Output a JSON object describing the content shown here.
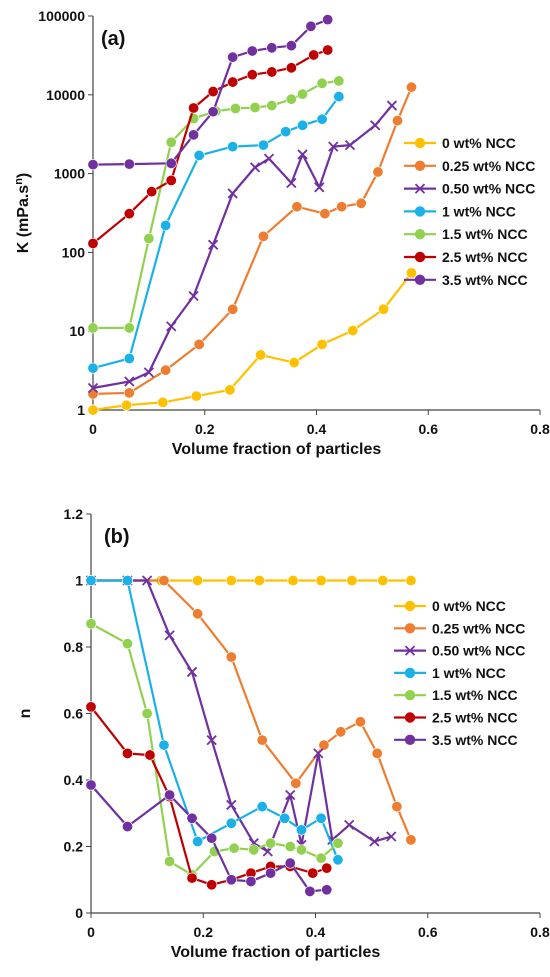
{
  "chart_data": [
    {
      "type": "line",
      "panel_label": "(a)",
      "xlabel": "Volume fraction of particles",
      "ylabel": "K (mPa.s",
      "ylabel_sup": "n",
      "ylabel_end": ")",
      "xlim": [
        0,
        0.8
      ],
      "ylim": [
        1,
        100000
      ],
      "yscale": "log",
      "xticks": [
        "0",
        "0.2",
        "0.4",
        "0.6",
        "0.8"
      ],
      "xtick_values": [
        0,
        0.2,
        0.4,
        0.6,
        0.8
      ],
      "yticks": [
        "1",
        "10",
        "100",
        "1000",
        "10000",
        "100000"
      ],
      "ytick_values": [
        1,
        10,
        100,
        1000,
        10000,
        100000
      ],
      "legend_position": "right",
      "series": [
        {
          "name": "0 wt% NCC",
          "color": "#ffc000",
          "marker": "circle",
          "points": [
            [
              0,
              1
            ],
            [
              0.06,
              1.15
            ],
            [
              0.125,
              1.25
            ],
            [
              0.185,
              1.5
            ],
            [
              0.245,
              1.8
            ],
            [
              0.3,
              5
            ],
            [
              0.36,
              4
            ],
            [
              0.41,
              6.8
            ],
            [
              0.465,
              10.2
            ],
            [
              0.52,
              19
            ],
            [
              0.57,
              55
            ]
          ]
        },
        {
          "name": "0.25 wt% NCC",
          "color": "#ed7d31",
          "marker": "circle",
          "points": [
            [
              0,
              1.6
            ],
            [
              0.065,
              1.65
            ],
            [
              0.13,
              3.2
            ],
            [
              0.19,
              6.8
            ],
            [
              0.25,
              19
            ],
            [
              0.305,
              160
            ],
            [
              0.365,
              380
            ],
            [
              0.415,
              310
            ],
            [
              0.445,
              380
            ],
            [
              0.48,
              420
            ],
            [
              0.51,
              1050
            ],
            [
              0.545,
              4700
            ],
            [
              0.57,
              12500
            ]
          ]
        },
        {
          "name": "0.50 wt% NCC",
          "color": "#7030a0",
          "marker": "x",
          "points": [
            [
              0,
              1.9
            ],
            [
              0.065,
              2.3
            ],
            [
              0.1,
              3
            ],
            [
              0.14,
              11.5
            ],
            [
              0.18,
              28
            ],
            [
              0.215,
              125
            ],
            [
              0.25,
              560
            ],
            [
              0.29,
              1200
            ],
            [
              0.315,
              1550
            ],
            [
              0.355,
              760
            ],
            [
              0.375,
              1750
            ],
            [
              0.405,
              670
            ],
            [
              0.43,
              2200
            ],
            [
              0.46,
              2300
            ],
            [
              0.505,
              4100
            ],
            [
              0.535,
              7300
            ]
          ]
        },
        {
          "name": "1 wt% NCC",
          "color": "#1ab0e8",
          "marker": "circle",
          "points": [
            [
              0,
              3.4
            ],
            [
              0.065,
              4.5
            ],
            [
              0.13,
              220
            ],
            [
              0.19,
              1700
            ],
            [
              0.25,
              2200
            ],
            [
              0.305,
              2300
            ],
            [
              0.345,
              3400
            ],
            [
              0.375,
              4100
            ],
            [
              0.41,
              4900
            ],
            [
              0.44,
              9500
            ]
          ]
        },
        {
          "name": "1.5 wt% NCC",
          "color": "#92d050",
          "marker": "circle",
          "points": [
            [
              0,
              11
            ],
            [
              0.065,
              11
            ],
            [
              0.1,
              150
            ],
            [
              0.14,
              2500
            ],
            [
              0.18,
              5000
            ],
            [
              0.22,
              6200
            ],
            [
              0.255,
              6700
            ],
            [
              0.29,
              6900
            ],
            [
              0.32,
              7300
            ],
            [
              0.355,
              8800
            ],
            [
              0.375,
              10200
            ],
            [
              0.41,
              14000
            ],
            [
              0.44,
              15000
            ]
          ]
        },
        {
          "name": "2.5 wt% NCC",
          "color": "#c00000",
          "marker": "circle",
          "points": [
            [
              0,
              130
            ],
            [
              0.065,
              310
            ],
            [
              0.105,
              590
            ],
            [
              0.14,
              820
            ],
            [
              0.18,
              6800
            ],
            [
              0.215,
              11000
            ],
            [
              0.25,
              14500
            ],
            [
              0.285,
              18000
            ],
            [
              0.32,
              19500
            ],
            [
              0.355,
              22000
            ],
            [
              0.395,
              32000
            ],
            [
              0.42,
              37000
            ]
          ]
        },
        {
          "name": "3.5 wt% NCC",
          "color": "#7030a0",
          "marker": "circle",
          "points": [
            [
              0,
              1300
            ],
            [
              0.065,
              1320
            ],
            [
              0.14,
              1350
            ],
            [
              0.18,
              3100
            ],
            [
              0.215,
              6100
            ],
            [
              0.25,
              30000
            ],
            [
              0.285,
              36000
            ],
            [
              0.32,
              39500
            ],
            [
              0.355,
              42000
            ],
            [
              0.39,
              74000
            ],
            [
              0.42,
              90000
            ]
          ]
        }
      ]
    },
    {
      "type": "line",
      "panel_label": "(b)",
      "xlabel": "Volume fraction of particles",
      "ylabel": "n",
      "ylabel_sup": "",
      "ylabel_end": "",
      "xlim": [
        0,
        0.8
      ],
      "ylim": [
        0,
        1.2
      ],
      "yscale": "linear",
      "xticks": [
        "0",
        "0.2",
        "0.4",
        "0.6",
        "0.8"
      ],
      "xtick_values": [
        0,
        0.2,
        0.4,
        0.6,
        0.8
      ],
      "yticks": [
        "0",
        "0.2",
        "0.4",
        "0.6",
        "0.8",
        "1",
        "1.2"
      ],
      "ytick_values": [
        0,
        0.2,
        0.4,
        0.6,
        0.8,
        1,
        1.2
      ],
      "legend_position": "right",
      "series": [
        {
          "name": "0 wt% NCC",
          "color": "#ffc000",
          "marker": "circle",
          "points": [
            [
              0,
              1
            ],
            [
              0.065,
              1
            ],
            [
              0.125,
              1
            ],
            [
              0.19,
              1
            ],
            [
              0.25,
              1
            ],
            [
              0.3,
              1
            ],
            [
              0.36,
              1
            ],
            [
              0.41,
              1
            ],
            [
              0.465,
              1
            ],
            [
              0.52,
              1
            ],
            [
              0.57,
              1
            ]
          ]
        },
        {
          "name": "0.25 wt% NCC",
          "color": "#ed7d31",
          "marker": "circle",
          "points": [
            [
              0,
              1
            ],
            [
              0.065,
              1
            ],
            [
              0.13,
              1
            ],
            [
              0.19,
              0.9
            ],
            [
              0.25,
              0.77
            ],
            [
              0.305,
              0.52
            ],
            [
              0.365,
              0.39
            ],
            [
              0.415,
              0.505
            ],
            [
              0.445,
              0.545
            ],
            [
              0.48,
              0.575
            ],
            [
              0.51,
              0.48
            ],
            [
              0.545,
              0.32
            ],
            [
              0.57,
              0.22
            ]
          ]
        },
        {
          "name": "0.50 wt% NCC",
          "color": "#7030a0",
          "marker": "x",
          "points": [
            [
              0,
              1
            ],
            [
              0.065,
              1
            ],
            [
              0.1,
              1
            ],
            [
              0.14,
              0.835
            ],
            [
              0.18,
              0.725
            ],
            [
              0.215,
              0.52
            ],
            [
              0.25,
              0.325
            ],
            [
              0.29,
              0.21
            ],
            [
              0.315,
              0.185
            ],
            [
              0.355,
              0.355
            ],
            [
              0.375,
              0.205
            ],
            [
              0.405,
              0.48
            ],
            [
              0.43,
              0.22
            ],
            [
              0.46,
              0.265
            ],
            [
              0.505,
              0.215
            ],
            [
              0.535,
              0.23
            ]
          ]
        },
        {
          "name": "1 wt% NCC",
          "color": "#1ab0e8",
          "marker": "circle",
          "points": [
            [
              0,
              1
            ],
            [
              0.065,
              1
            ],
            [
              0.13,
              0.505
            ],
            [
              0.19,
              0.215
            ],
            [
              0.25,
              0.27
            ],
            [
              0.305,
              0.32
            ],
            [
              0.345,
              0.285
            ],
            [
              0.375,
              0.25
            ],
            [
              0.41,
              0.285
            ],
            [
              0.44,
              0.16
            ]
          ]
        },
        {
          "name": "1.5 wt% NCC",
          "color": "#92d050",
          "marker": "circle",
          "points": [
            [
              0,
              0.87
            ],
            [
              0.065,
              0.81
            ],
            [
              0.1,
              0.6
            ],
            [
              0.14,
              0.155
            ],
            [
              0.18,
              0.115
            ],
            [
              0.22,
              0.185
            ],
            [
              0.255,
              0.195
            ],
            [
              0.29,
              0.19
            ],
            [
              0.32,
              0.21
            ],
            [
              0.355,
              0.2
            ],
            [
              0.375,
              0.19
            ],
            [
              0.41,
              0.165
            ],
            [
              0.44,
              0.21
            ]
          ]
        },
        {
          "name": "2.5 wt% NCC",
          "color": "#c00000",
          "marker": "circle",
          "points": [
            [
              0,
              0.62
            ],
            [
              0.065,
              0.48
            ],
            [
              0.105,
              0.475
            ],
            [
              0.14,
              0.35
            ],
            [
              0.18,
              0.105
            ],
            [
              0.215,
              0.085
            ],
            [
              0.25,
              0.1
            ],
            [
              0.285,
              0.12
            ],
            [
              0.32,
              0.14
            ],
            [
              0.355,
              0.14
            ],
            [
              0.395,
              0.12
            ],
            [
              0.42,
              0.135
            ]
          ]
        },
        {
          "name": "3.5 wt% NCC",
          "color": "#7030a0",
          "marker": "circle",
          "points": [
            [
              0,
              0.385
            ],
            [
              0.065,
              0.26
            ],
            [
              0.14,
              0.355
            ],
            [
              0.18,
              0.285
            ],
            [
              0.215,
              0.225
            ],
            [
              0.25,
              0.1
            ],
            [
              0.285,
              0.095
            ],
            [
              0.32,
              0.12
            ],
            [
              0.355,
              0.15
            ],
            [
              0.39,
              0.065
            ],
            [
              0.42,
              0.07
            ]
          ]
        }
      ]
    }
  ]
}
